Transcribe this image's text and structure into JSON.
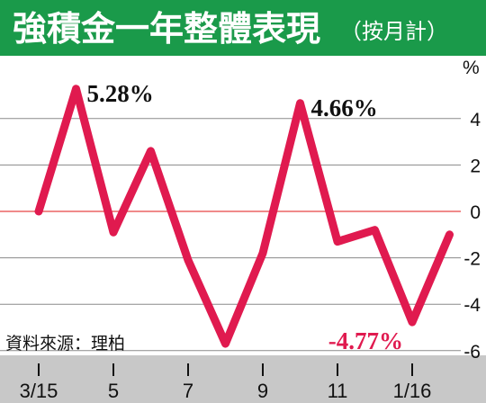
{
  "header": {
    "title": "強積金一年整體表現",
    "subtitle": "（按月計）"
  },
  "source_note": "資料來源：理柏",
  "colors": {
    "header_bg": "#1a9a4a",
    "line": "#e01a4f",
    "zero_line": "#f08a8a",
    "axis_band": "#c8c8c8",
    "label_negative": "#e01a4f",
    "label_positive": "#111111"
  },
  "chart_data": {
    "type": "line",
    "title": "強積金一年整體表現",
    "subtitle": "（按月計）",
    "ylabel": "%",
    "xlabel": "",
    "x": [
      "3/15",
      "4/15",
      "5/15",
      "6/15",
      "7/15",
      "8/15",
      "9/15",
      "10/15",
      "11/15",
      "12/15",
      "1/16",
      "2/16"
    ],
    "xtick_labels": [
      "3/15",
      "5",
      "7",
      "9",
      "11",
      "1/16"
    ],
    "xtick_indices": [
      0,
      2,
      4,
      6,
      8,
      10
    ],
    "series": [
      {
        "values": [
          0.0,
          5.28,
          -0.9,
          2.6,
          -2.1,
          -5.7,
          -1.8,
          4.66,
          -1.3,
          -0.8,
          -4.77,
          -1.0
        ]
      }
    ],
    "ylim": [
      -6.6,
      6.6
    ],
    "yticks": [
      -6,
      -4,
      -2,
      0,
      2,
      4
    ],
    "ytick_labels": [
      "-6",
      "-4",
      "-2",
      "0",
      "2",
      "4"
    ],
    "grid": "horizontal",
    "annotations": [
      {
        "index": 1,
        "text": "5.28%",
        "color": "#111111"
      },
      {
        "index": 7,
        "text": "4.66%",
        "color": "#111111"
      },
      {
        "index": 10,
        "text": "-4.77%",
        "color": "#e01a4f"
      }
    ]
  }
}
